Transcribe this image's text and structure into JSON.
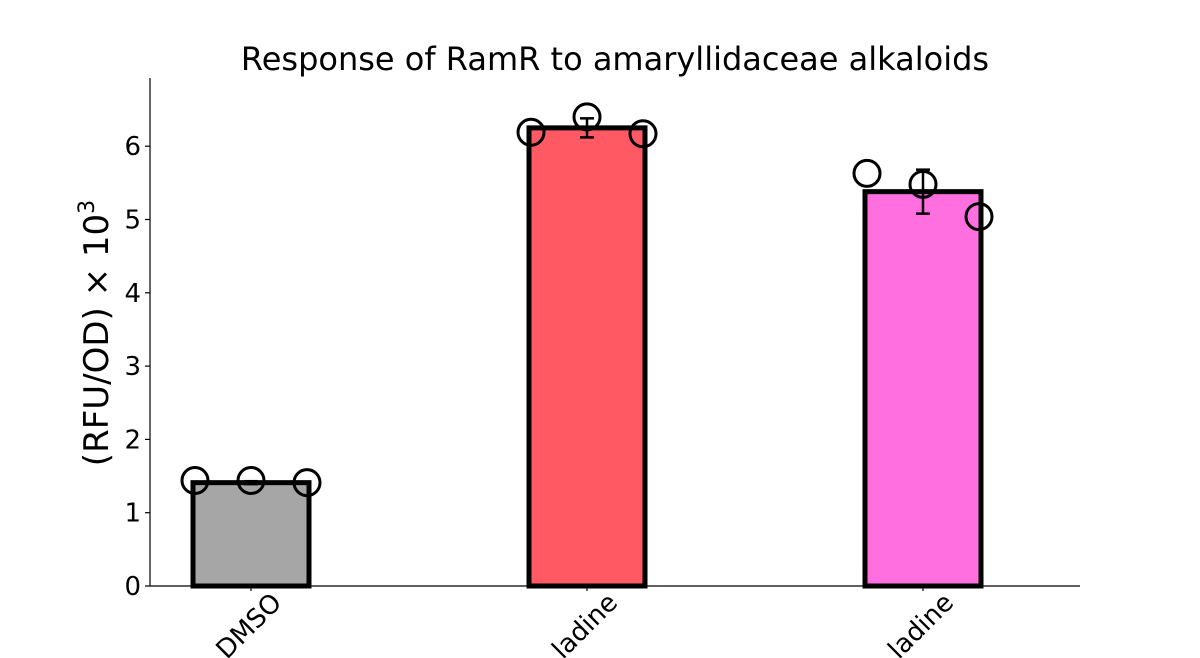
{
  "chart_data": {
    "type": "bar",
    "title": "Response of RamR to amaryllidaceae alkaloids",
    "ylabel": {
      "text": "(RFU/OD) × 10",
      "exponent": "3"
    },
    "ylim": [
      0,
      6.9
    ],
    "yticks": [
      0,
      1,
      2,
      3,
      4,
      5,
      6
    ],
    "categories": [
      "DMSO",
      "...ladine",
      "...ladine"
    ],
    "values": [
      1.41,
      6.25,
      5.38
    ],
    "errors": [
      0.02,
      0.13,
      0.3
    ],
    "points": [
      [
        1.44,
        1.44,
        1.41
      ],
      [
        6.19,
        6.4,
        6.17
      ],
      [
        5.63,
        5.48,
        5.04
      ]
    ],
    "colors": [
      "#a6a6a6",
      "#ff5a64",
      "#ff6fe0"
    ],
    "grid": false,
    "legend": "none"
  }
}
